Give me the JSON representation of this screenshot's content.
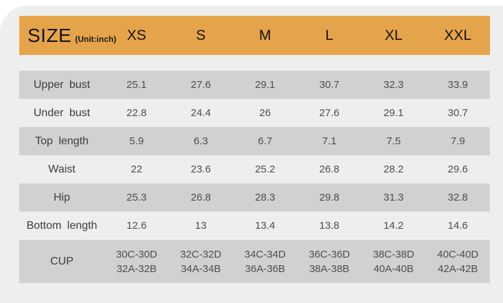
{
  "chart_data": {
    "type": "table",
    "title": "SIZE",
    "unit_label": "(Unit:inch)",
    "columns": [
      "XS",
      "S",
      "M",
      "L",
      "XL",
      "XXL"
    ],
    "rows": [
      {
        "label": "Upper bust",
        "striped": true,
        "values": [
          "25.1",
          "27.6",
          "29.1",
          "30.7",
          "32.3",
          "33.9"
        ]
      },
      {
        "label": "Under bust",
        "striped": false,
        "values": [
          "22.8",
          "24.4",
          "26",
          "27.6",
          "29.1",
          "30.7"
        ]
      },
      {
        "label": "Top length",
        "striped": true,
        "values": [
          "5.9",
          "6.3",
          "6.7",
          "7.1",
          "7.5",
          "7.9"
        ]
      },
      {
        "label": "Waist",
        "striped": false,
        "values": [
          "22",
          "23.6",
          "25.2",
          "26.8",
          "28.2",
          "29.6"
        ]
      },
      {
        "label": "Hip",
        "striped": true,
        "values": [
          "25.3",
          "26.8",
          "28.3",
          "29.8",
          "31.3",
          "32.8"
        ]
      },
      {
        "label": "Bottom length",
        "striped": false,
        "values": [
          "12.6",
          "13",
          "13.4",
          "13.8",
          "14.2",
          "14.6"
        ]
      },
      {
        "label": "CUP",
        "striped": true,
        "tall": true,
        "values": [
          [
            "30C-30D",
            "32A-32B"
          ],
          [
            "32C-32D",
            "34A-34B"
          ],
          [
            "34C-34D",
            "36A-36B"
          ],
          [
            "36C-36D",
            "38A-38B"
          ],
          [
            "38C-38D",
            "40A-40B"
          ],
          [
            "40C-40D",
            "42A-42B"
          ]
        ]
      }
    ],
    "colors": {
      "header_background": "#e6a44a",
      "stripe": "#d1d1d1",
      "card_background": "#eeeeee",
      "page_background": "#ffffff"
    }
  }
}
